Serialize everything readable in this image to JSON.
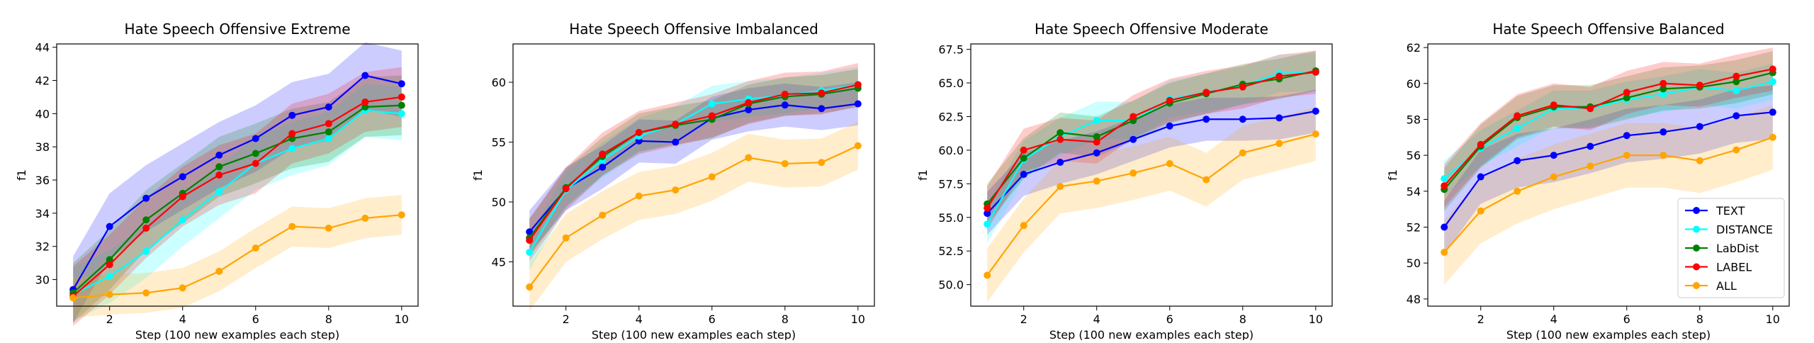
{
  "chart_data": [
    {
      "type": "line",
      "title": "Hate Speech Offensive Extreme",
      "xlabel": "Step (100 new examples each step)",
      "ylabel": "f1",
      "xlim": [
        0.55,
        10.45
      ],
      "ylim": [
        28.4,
        44.2
      ],
      "xticks": [
        2,
        4,
        6,
        8,
        10
      ],
      "yticks": [
        30,
        32,
        34,
        36,
        38,
        40,
        42,
        44
      ],
      "x": [
        1,
        2,
        3,
        4,
        5,
        6,
        7,
        8,
        9,
        10
      ],
      "series": [
        {
          "name": "TEXT",
          "color": "#0000ff",
          "band": 2.0,
          "values": [
            29.4,
            33.2,
            34.9,
            36.2,
            37.5,
            38.5,
            39.9,
            40.4,
            42.3,
            41.8
          ]
        },
        {
          "name": "DISTANCE",
          "color": "#00ffff",
          "band": 1.6,
          "values": [
            29.1,
            30.2,
            31.7,
            33.6,
            35.3,
            37.0,
            37.9,
            38.5,
            40.2,
            40.0
          ]
        },
        {
          "name": "LabDist",
          "color": "#008000",
          "band": 1.8,
          "values": [
            29.2,
            31.2,
            33.6,
            35.2,
            36.8,
            37.6,
            38.5,
            38.9,
            40.4,
            40.5
          ]
        },
        {
          "name": "LABEL",
          "color": "#ff0000",
          "band": 1.8,
          "values": [
            29.0,
            30.9,
            33.1,
            35.0,
            36.3,
            37.0,
            38.8,
            39.4,
            40.7,
            41.0
          ]
        },
        {
          "name": "ALL",
          "color": "#ffa500",
          "band": 1.2,
          "values": [
            28.9,
            29.1,
            29.2,
            29.5,
            30.5,
            31.9,
            33.2,
            33.1,
            33.7,
            33.9
          ]
        }
      ]
    },
    {
      "type": "line",
      "title": "Hate Speech Offensive Imbalanced",
      "xlabel": "Step (100 new examples each step)",
      "ylabel": "f1",
      "xlim": [
        0.55,
        10.45
      ],
      "ylim": [
        41.3,
        63.2
      ],
      "xticks": [
        2,
        4,
        6,
        8,
        10
      ],
      "yticks": [
        45,
        50,
        55,
        60
      ],
      "x": [
        1,
        2,
        3,
        4,
        5,
        6,
        7,
        8,
        9,
        10
      ],
      "series": [
        {
          "name": "TEXT",
          "color": "#0000ff",
          "band": 1.8,
          "values": [
            47.5,
            51.1,
            52.9,
            55.1,
            55.0,
            57.0,
            57.7,
            58.1,
            57.8,
            58.2
          ]
        },
        {
          "name": "DISTANCE",
          "color": "#00ffff",
          "band": 1.5,
          "values": [
            45.8,
            51.0,
            53.5,
            55.5,
            56.5,
            58.2,
            58.6,
            58.9,
            59.3,
            59.8
          ]
        },
        {
          "name": "LabDist",
          "color": "#008000",
          "band": 1.6,
          "values": [
            47.0,
            51.2,
            53.8,
            55.8,
            56.4,
            56.9,
            58.2,
            58.8,
            59.0,
            59.5
          ]
        },
        {
          "name": "LABEL",
          "color": "#ff0000",
          "band": 1.8,
          "values": [
            46.8,
            51.1,
            54.0,
            55.8,
            56.5,
            57.2,
            58.3,
            59.0,
            59.1,
            59.8
          ]
        },
        {
          "name": "ALL",
          "color": "#ffa500",
          "band": 2.0,
          "values": [
            42.9,
            47.0,
            48.9,
            50.5,
            51.0,
            52.1,
            53.7,
            53.2,
            53.3,
            54.7
          ]
        }
      ]
    },
    {
      "type": "line",
      "title": "Hate Speech Offensive Moderate",
      "xlabel": "Step (100 new examples each step)",
      "ylabel": "f1",
      "xlim": [
        0.55,
        10.45
      ],
      "ylim": [
        48.4,
        67.9
      ],
      "xticks": [
        2,
        4,
        6,
        8,
        10
      ],
      "yticks": [
        50.0,
        52.5,
        55.0,
        57.5,
        60.0,
        62.5,
        65.0,
        67.5
      ],
      "x": [
        1,
        2,
        3,
        4,
        5,
        6,
        7,
        8,
        9,
        10
      ],
      "series": [
        {
          "name": "TEXT",
          "color": "#0000ff",
          "band": 1.6,
          "values": [
            55.3,
            58.2,
            59.1,
            59.8,
            60.8,
            61.8,
            62.3,
            62.3,
            62.4,
            62.9
          ]
        },
        {
          "name": "DISTANCE",
          "color": "#00ffff",
          "band": 1.4,
          "values": [
            54.5,
            59.3,
            61.0,
            62.2,
            62.2,
            63.8,
            64.3,
            64.8,
            65.7,
            65.8
          ]
        },
        {
          "name": "LabDist",
          "color": "#008000",
          "band": 1.5,
          "values": [
            56.0,
            59.4,
            61.3,
            61.0,
            62.2,
            63.5,
            64.2,
            64.9,
            65.3,
            65.9
          ]
        },
        {
          "name": "LABEL",
          "color": "#ff0000",
          "band": 1.6,
          "values": [
            55.7,
            60.0,
            60.8,
            60.6,
            62.5,
            63.7,
            64.3,
            64.7,
            65.5,
            65.8
          ]
        },
        {
          "name": "ALL",
          "color": "#ffa500",
          "band": 2.0,
          "values": [
            50.7,
            54.4,
            57.3,
            57.7,
            58.3,
            59.0,
            57.8,
            59.8,
            60.5,
            61.2
          ]
        }
      ]
    },
    {
      "type": "line",
      "title": "Hate Speech Offensive Balanced",
      "xlabel": "Step (100 new examples each step)",
      "ylabel": "f1",
      "xlim": [
        0.55,
        10.45
      ],
      "ylim": [
        47.6,
        62.2
      ],
      "xticks": [
        2,
        4,
        6,
        8,
        10
      ],
      "yticks": [
        48,
        50,
        52,
        54,
        56,
        58,
        60,
        62
      ],
      "x": [
        1,
        2,
        3,
        4,
        5,
        6,
        7,
        8,
        9,
        10
      ],
      "legend": {
        "placement": "lower right",
        "labels": [
          "TEXT",
          "DISTANCE",
          "LabDist",
          "LABEL",
          "ALL"
        ]
      },
      "series": [
        {
          "name": "TEXT",
          "color": "#0000ff",
          "band": 1.5,
          "values": [
            52.0,
            54.8,
            55.7,
            56.0,
            56.5,
            57.1,
            57.3,
            57.6,
            58.2,
            58.4
          ]
        },
        {
          "name": "DISTANCE",
          "color": "#00ffff",
          "band": 1.0,
          "values": [
            54.7,
            56.4,
            57.5,
            58.6,
            58.6,
            59.1,
            59.4,
            59.8,
            59.6,
            60.1
          ]
        },
        {
          "name": "LabDist",
          "color": "#008000",
          "band": 1.2,
          "values": [
            54.1,
            56.5,
            58.1,
            58.7,
            58.7,
            59.2,
            59.7,
            59.8,
            60.1,
            60.6
          ]
        },
        {
          "name": "LABEL",
          "color": "#ff0000",
          "band": 1.2,
          "values": [
            54.3,
            56.6,
            58.2,
            58.8,
            58.6,
            59.5,
            60.0,
            59.9,
            60.4,
            60.8
          ]
        },
        {
          "name": "ALL",
          "color": "#ffa500",
          "band": 1.8,
          "values": [
            50.6,
            52.9,
            54.0,
            54.8,
            55.4,
            56.0,
            56.0,
            55.7,
            56.3,
            57.0
          ]
        }
      ]
    }
  ]
}
